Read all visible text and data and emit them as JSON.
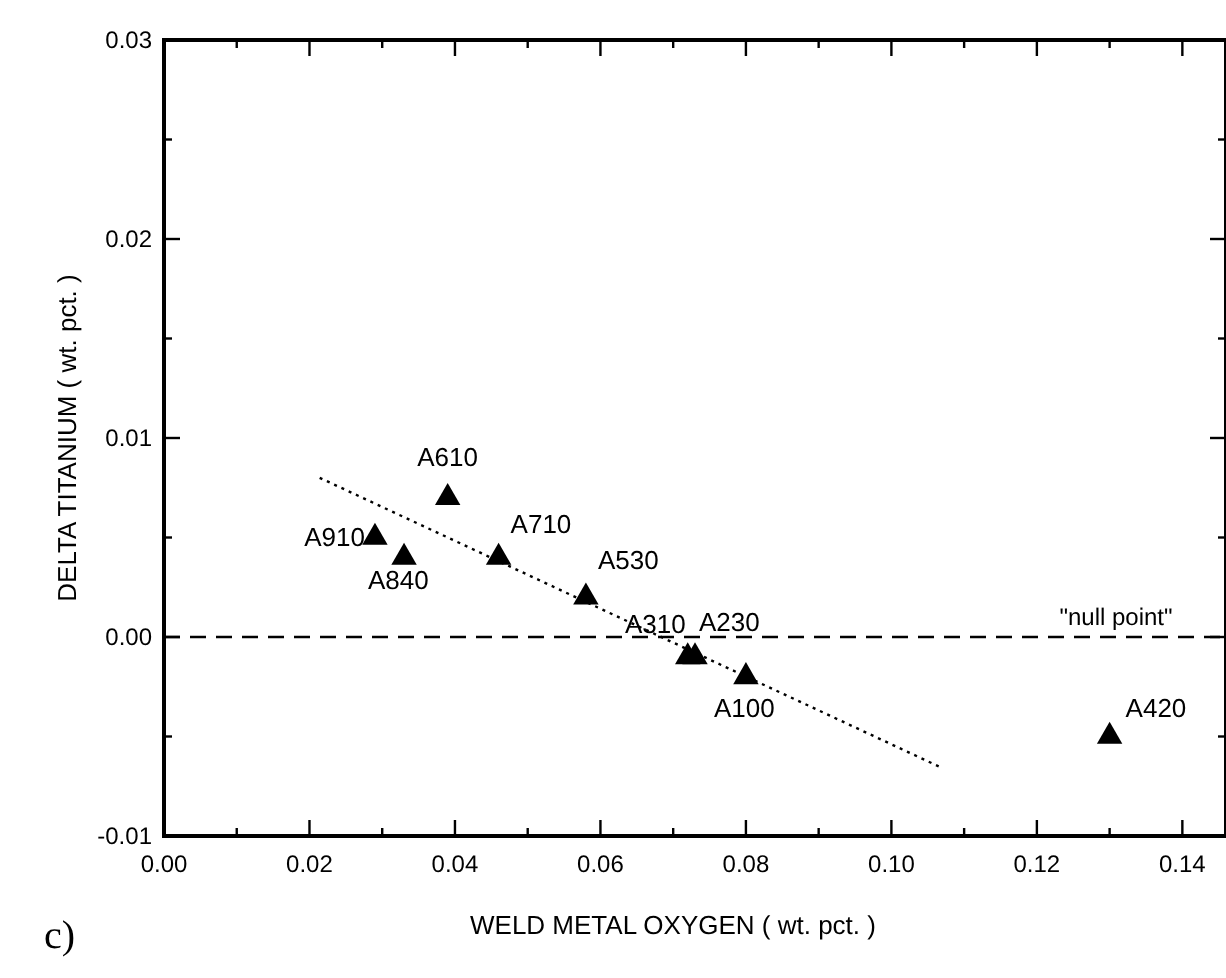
{
  "chart_data": {
    "type": "scatter",
    "xlabel": "WELD METAL OXYGEN ( wt. pct. )",
    "ylabel": "DELTA TITANIUM ( wt. pct. )",
    "xlim": [
      0,
      0.146
    ],
    "ylim": [
      -0.01,
      0.03
    ],
    "xticks": [
      {
        "value": 0,
        "label": "0.00"
      },
      {
        "value": 0.01,
        "label": null
      },
      {
        "value": 0.02,
        "label": "0.02"
      },
      {
        "value": 0.03,
        "label": null
      },
      {
        "value": 0.04,
        "label": "0.04"
      },
      {
        "value": 0.05,
        "label": null
      },
      {
        "value": 0.06,
        "label": "0.06"
      },
      {
        "value": 0.07,
        "label": null
      },
      {
        "value": 0.08,
        "label": "0.08"
      },
      {
        "value": 0.09,
        "label": null
      },
      {
        "value": 0.1,
        "label": "0.10"
      },
      {
        "value": 0.11,
        "label": null
      },
      {
        "value": 0.12,
        "label": "0.12"
      },
      {
        "value": 0.13,
        "label": null
      },
      {
        "value": 0.14,
        "label": "0.14"
      }
    ],
    "yticks": [
      {
        "value": -0.01,
        "label": "-0.01"
      },
      {
        "value": -0.005,
        "label": null
      },
      {
        "value": 0,
        "label": "0.00"
      },
      {
        "value": 0.005,
        "label": null
      },
      {
        "value": 0.01,
        "label": "0.01"
      },
      {
        "value": 0.015,
        "label": null
      },
      {
        "value": 0.02,
        "label": "0.02"
      },
      {
        "value": 0.025,
        "label": null
      },
      {
        "value": 0.03,
        "label": "0.03"
      }
    ],
    "grid": false,
    "marker": "triangle",
    "series": [
      {
        "color": "#000000",
        "x": [
          0.039,
          0.029,
          0.033,
          0.046,
          0.058,
          0.072,
          0.073,
          0.08,
          0.13
        ],
        "values": [
          0.007,
          0.005,
          0.004,
          0.004,
          0.002,
          -0.001,
          -0.001,
          -0.002,
          -0.005
        ]
      },
      {
        "type": "line",
        "color": "#000000",
        "line_style": "dotted",
        "marker": "none",
        "x": [
          0.0214,
          0.1065
        ],
        "values": [
          0.008,
          -0.0065
        ]
      }
    ],
    "ref_lines": [
      {
        "axis": "y",
        "value": 0,
        "label": "\"null point\"",
        "color": "#000000",
        "line_style": "dashed"
      }
    ],
    "annotations": [
      {
        "text": "A610",
        "x": 0.039,
        "y": 0.007
      },
      {
        "text": "A910",
        "x": 0.029,
        "y": 0.005
      },
      {
        "text": "A840",
        "x": 0.033,
        "y": 0.004
      },
      {
        "text": "A710",
        "x": 0.046,
        "y": 0.004
      },
      {
        "text": "A530",
        "x": 0.058,
        "y": 0.002
      },
      {
        "text": "A310",
        "x": 0.072,
        "y": -0.001
      },
      {
        "text": "A230",
        "x": 0.073,
        "y": -0.001
      },
      {
        "text": "A100",
        "x": 0.08,
        "y": -0.002
      },
      {
        "text": "A420",
        "x": 0.13,
        "y": -0.005
      },
      "c)"
    ]
  }
}
